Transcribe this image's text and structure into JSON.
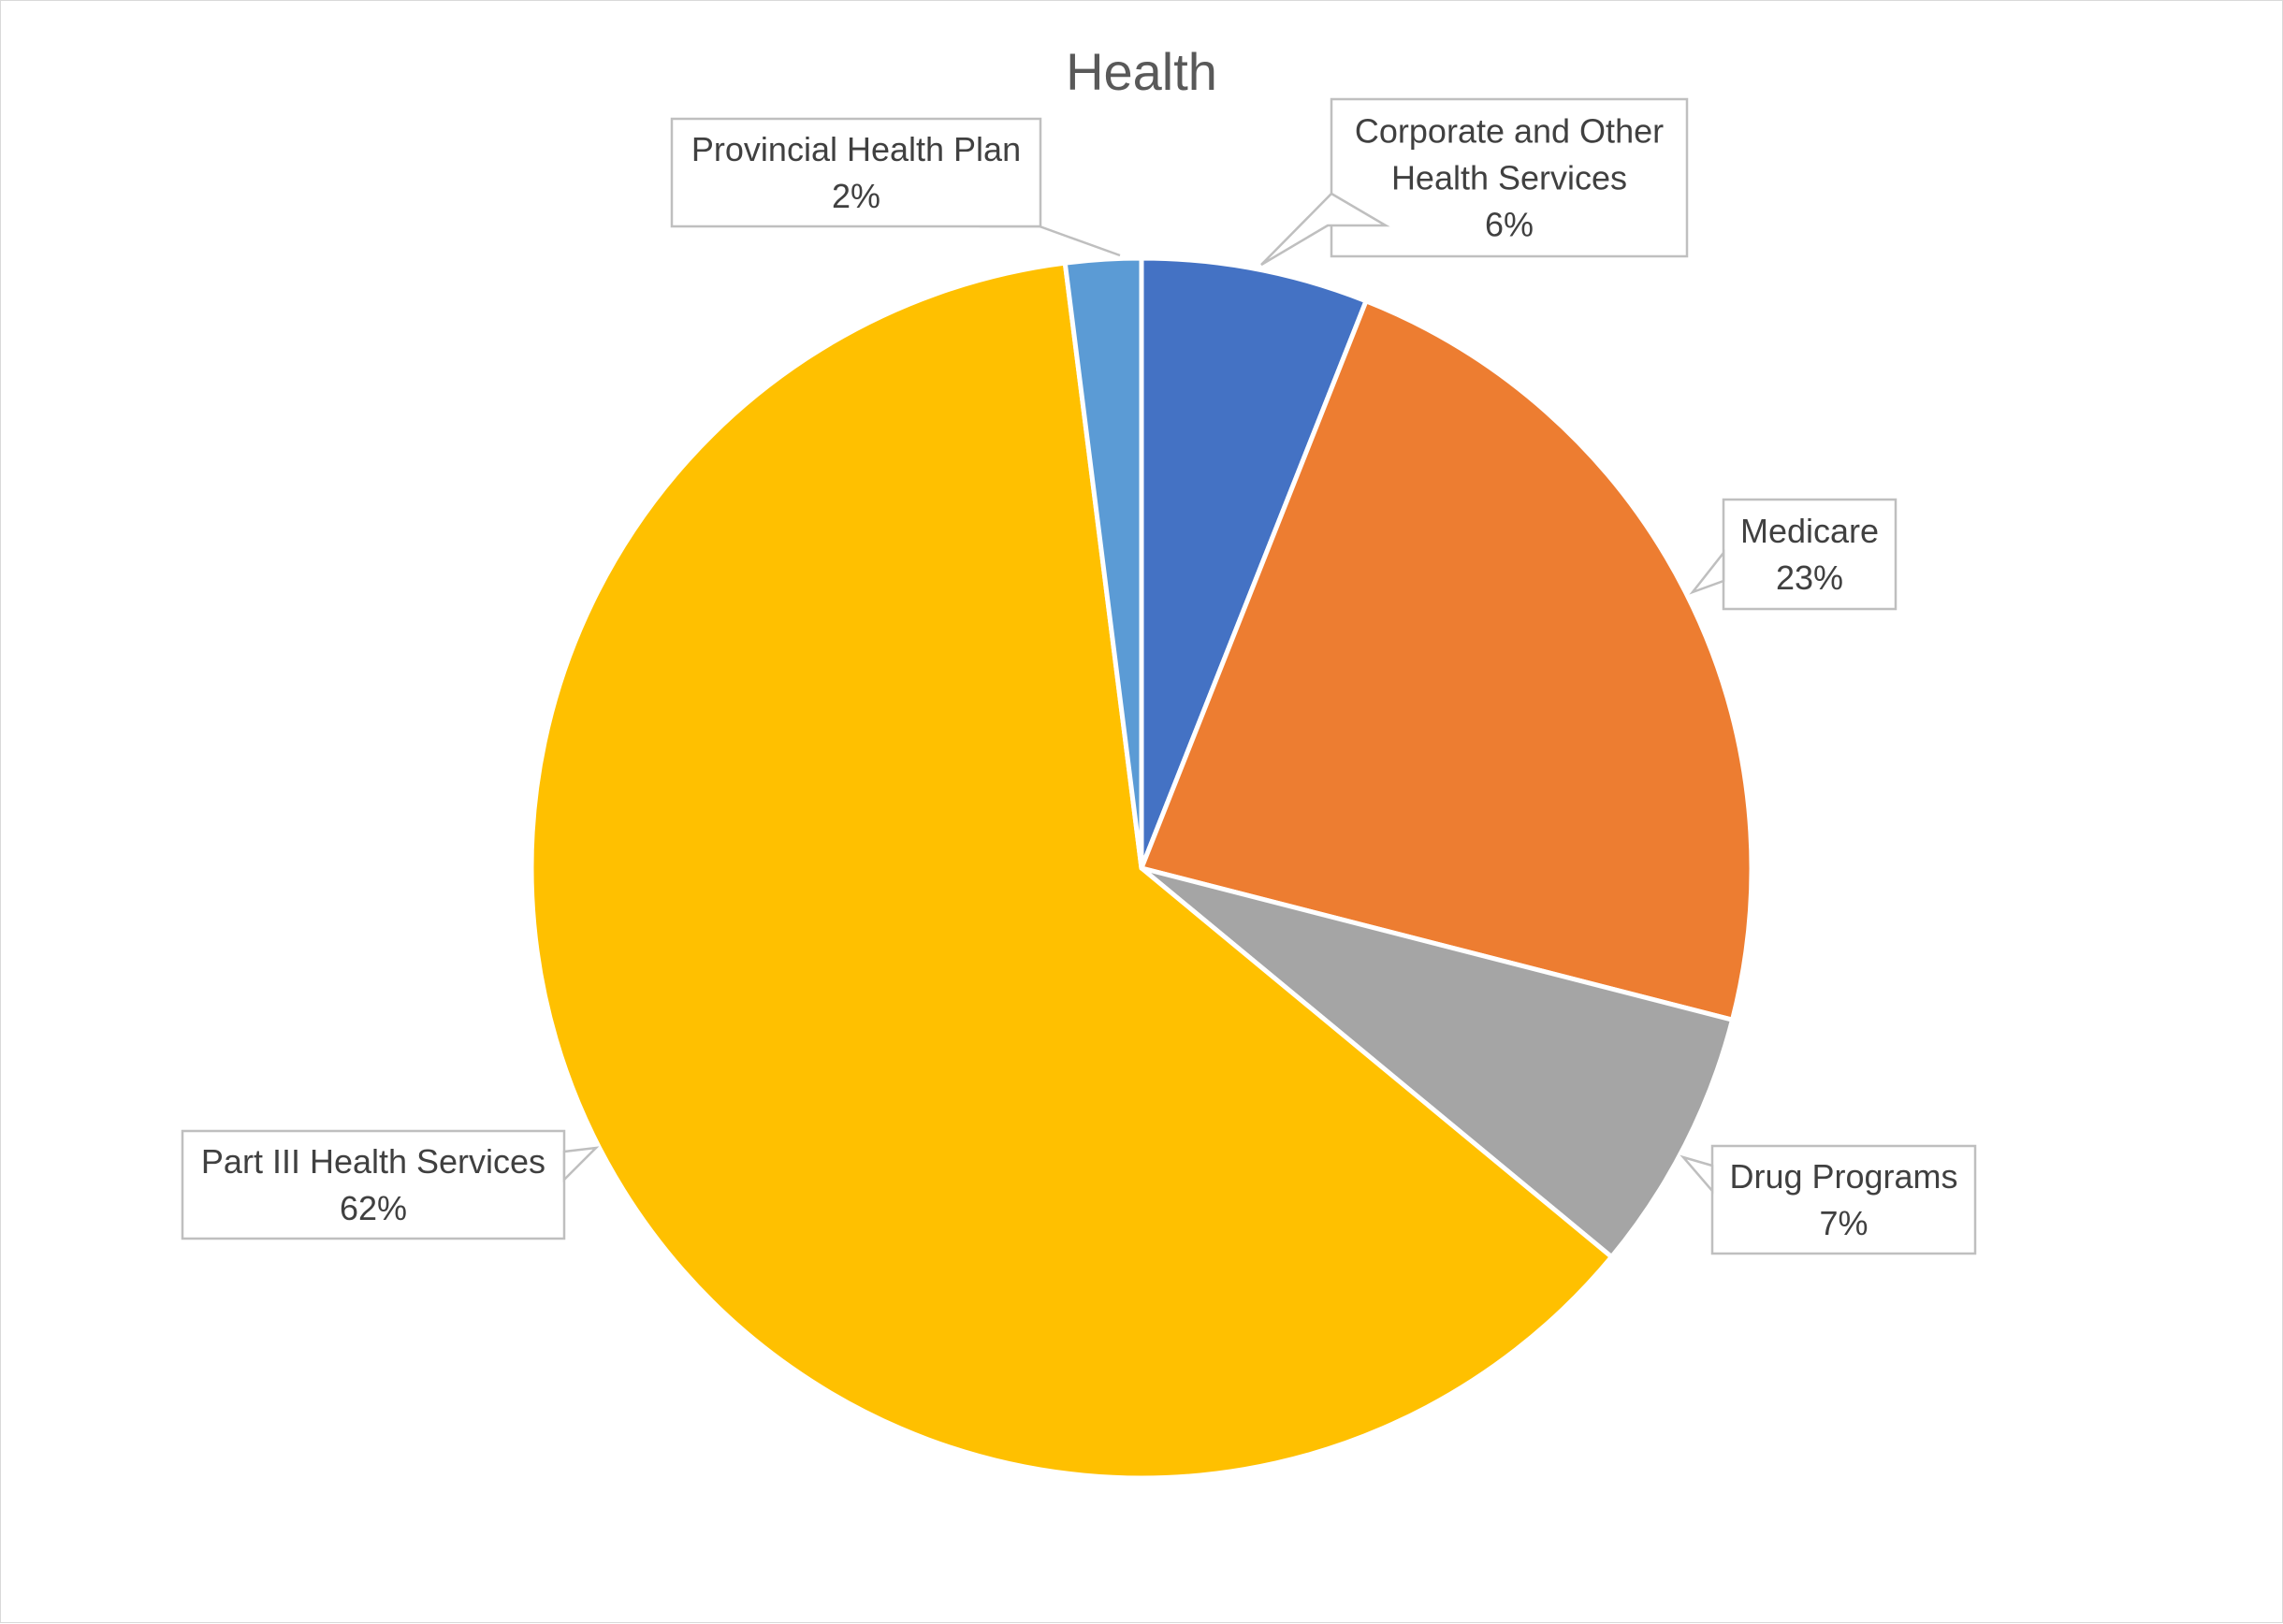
{
  "chart_data": {
    "type": "pie",
    "title": "Health",
    "slices": [
      {
        "label": "Corporate and Other Health Services",
        "display_label": [
          "Corporate and Other",
          "Health Services"
        ],
        "value": 6,
        "value_label": "6%",
        "color": "#4472C4"
      },
      {
        "label": "Medicare",
        "display_label": [
          "Medicare"
        ],
        "value": 23,
        "value_label": "23%",
        "color": "#ED7D31"
      },
      {
        "label": "Drug Programs",
        "display_label": [
          "Drug Programs"
        ],
        "value": 7,
        "value_label": "7%",
        "color": "#A5A5A5"
      },
      {
        "label": "Part III Health Services",
        "display_label": [
          "Part III Health Services"
        ],
        "value": 62,
        "value_label": "62%",
        "color": "#FFC000"
      },
      {
        "label": "Provincial Health Plan",
        "display_label": [
          "Provincial Health Plan"
        ],
        "value": 2,
        "value_label": "2%",
        "color": "#5B9BD5"
      }
    ],
    "start_angle_deg": 0,
    "direction": "clockwise",
    "legend": "none",
    "data_labels": "callouts"
  }
}
